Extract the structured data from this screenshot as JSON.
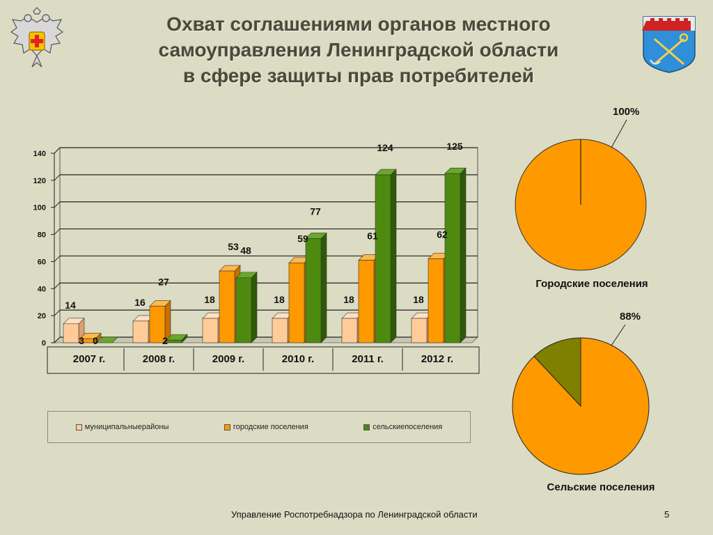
{
  "title_lines": [
    "Охват соглашениями органов местного",
    "самоуправления  Ленинградской области",
    "в сфере защиты прав потребителей"
  ],
  "colors": {
    "background": "#dcdcc4",
    "municipal": "#ffcc99",
    "urban": "#ff9900",
    "rural": "#4f8a10",
    "rural_pie": "#808000"
  },
  "icons": {
    "left_emblem": "double-headed-eagle-emblem-icon",
    "right_emblem": "leningrad-oblast-coat-of-arms-icon"
  },
  "chart_data": [
    {
      "type": "bar",
      "categories": [
        "2007 г.",
        "2008 г.",
        "2009 г.",
        "2010 г.",
        "2011 г.",
        "2012 г."
      ],
      "series": [
        {
          "name": "муниципальныерайоны",
          "values": [
            14,
            16,
            18,
            18,
            18,
            18
          ]
        },
        {
          "name": "городские поселения",
          "values": [
            3,
            27,
            53,
            59,
            61,
            62
          ]
        },
        {
          "name": "сельскиепоселения",
          "values": [
            0,
            2,
            48,
            77,
            124,
            125
          ]
        }
      ],
      "value_labels": [
        [
          "14",
          "16",
          "18",
          "18",
          "18",
          "18"
        ],
        [
          "3",
          "27",
          "53",
          "59",
          "61",
          "62"
        ],
        [
          "0",
          "2",
          "48",
          "77",
          "124",
          "125"
        ]
      ],
      "ylim": [
        0,
        140
      ],
      "yticks": [
        0,
        20,
        40,
        60,
        80,
        100,
        120,
        140
      ],
      "ytick_labels": [
        "0",
        "20",
        "40",
        "60",
        "80",
        "100",
        "120",
        "140"
      ],
      "grid": true,
      "legend_position": "bottom",
      "style": "3d-column"
    },
    {
      "type": "pie",
      "title": "Городские поселения",
      "slices": [
        {
          "label": "100%",
          "value": 100
        }
      ],
      "pct_label": "100%"
    },
    {
      "type": "pie",
      "title": "Сельские поселения",
      "slices": [
        {
          "label": "88%",
          "value": 88
        },
        {
          "label": "",
          "value": 12
        }
      ],
      "pct_label": "88%"
    }
  ],
  "legend": {
    "items": [
      "муниципальныерайоны",
      "городские поселения",
      "сельскиепоселения"
    ]
  },
  "footer": "Управление Роспотребнадзора по Ленинградской области",
  "page_number": "5"
}
